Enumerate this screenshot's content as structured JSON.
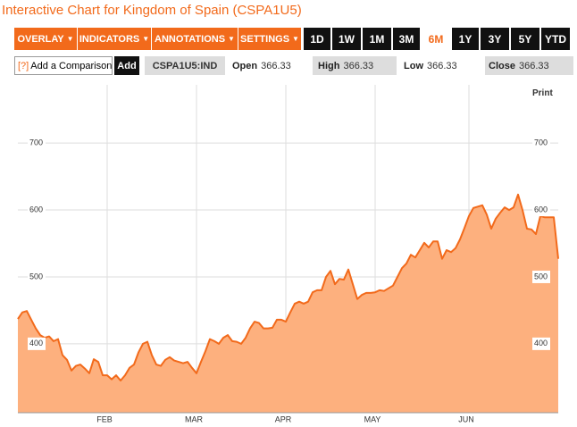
{
  "header": {
    "title": "Interactive Chart for Kingdom of Spain (CSPA1U5)"
  },
  "toolbar": {
    "menus": [
      "OVERLAY",
      "INDICATORS",
      "ANNOTATIONS",
      "SETTINGS"
    ],
    "ranges": [
      "1D",
      "1W",
      "1M",
      "3M",
      "6M",
      "1Y",
      "3Y",
      "5Y",
      "YTD"
    ],
    "selected_range": 4
  },
  "comparison": {
    "help": "[?]",
    "placeholder": "Add a Comparison",
    "button": "Add"
  },
  "quote": {
    "symbol": "CSPA1U5:IND",
    "open_label": "Open",
    "open": 366.33,
    "high_label": "High",
    "high": 366.33,
    "low_label": "Low",
    "low": 366.33,
    "close_label": "Close",
    "close": 366.33
  },
  "print": "Print",
  "chart_data": {
    "type": "area",
    "line_color": "#f26a1b",
    "fill_color": "#fdb07e",
    "categories": [
      null,
      null,
      null,
      null,
      null,
      null,
      null,
      null,
      null,
      null,
      null,
      null,
      null,
      null,
      null,
      null,
      null,
      null,
      null,
      null,
      "FEB",
      null,
      null,
      null,
      null,
      null,
      null,
      null,
      null,
      null,
      null,
      null,
      null,
      null,
      null,
      null,
      null,
      null,
      null,
      null,
      "MAR",
      null,
      null,
      null,
      null,
      null,
      null,
      null,
      null,
      null,
      null,
      null,
      null,
      null,
      null,
      null,
      null,
      null,
      null,
      null,
      "APR",
      null,
      null,
      null,
      null,
      null,
      null,
      null,
      null,
      null,
      null,
      null,
      null,
      null,
      null,
      null,
      null,
      null,
      null,
      null,
      "MAY",
      null,
      null,
      null,
      null,
      null,
      null,
      null,
      null,
      null,
      null,
      null,
      null,
      null,
      null,
      null,
      null,
      null,
      null,
      null,
      null,
      "JUN",
      null,
      null,
      null,
      null,
      null,
      null,
      null,
      null,
      null,
      null,
      null,
      null,
      null,
      null,
      null,
      null,
      null,
      null,
      null,
      null
    ],
    "values": [
      437,
      447,
      449,
      436,
      423,
      413,
      409,
      411,
      404,
      407,
      383,
      376,
      360,
      367,
      369,
      363,
      356,
      377,
      373,
      353,
      353,
      347,
      353,
      345,
      353,
      364,
      369,
      387,
      400,
      403,
      383,
      369,
      367,
      376,
      380,
      375,
      373,
      371,
      373,
      364,
      356,
      373,
      389,
      407,
      404,
      400,
      409,
      413,
      404,
      403,
      400,
      409,
      423,
      433,
      431,
      423,
      423,
      424,
      436,
      436,
      433,
      447,
      460,
      463,
      460,
      463,
      477,
      480,
      480,
      500,
      509,
      489,
      497,
      496,
      511,
      489,
      467,
      473,
      476,
      476,
      477,
      480,
      479,
      483,
      487,
      500,
      513,
      520,
      533,
      529,
      540,
      551,
      544,
      553,
      553,
      527,
      540,
      537,
      543,
      556,
      573,
      591,
      603,
      605,
      607,
      593,
      572,
      587,
      596,
      604,
      600,
      604,
      623,
      600,
      572,
      571,
      564,
      591,
      589,
      589,
      589,
      527
    ],
    "ylim": [
      297,
      787
    ],
    "yticks": [
      400,
      500,
      600,
      700
    ],
    "grid": true
  }
}
